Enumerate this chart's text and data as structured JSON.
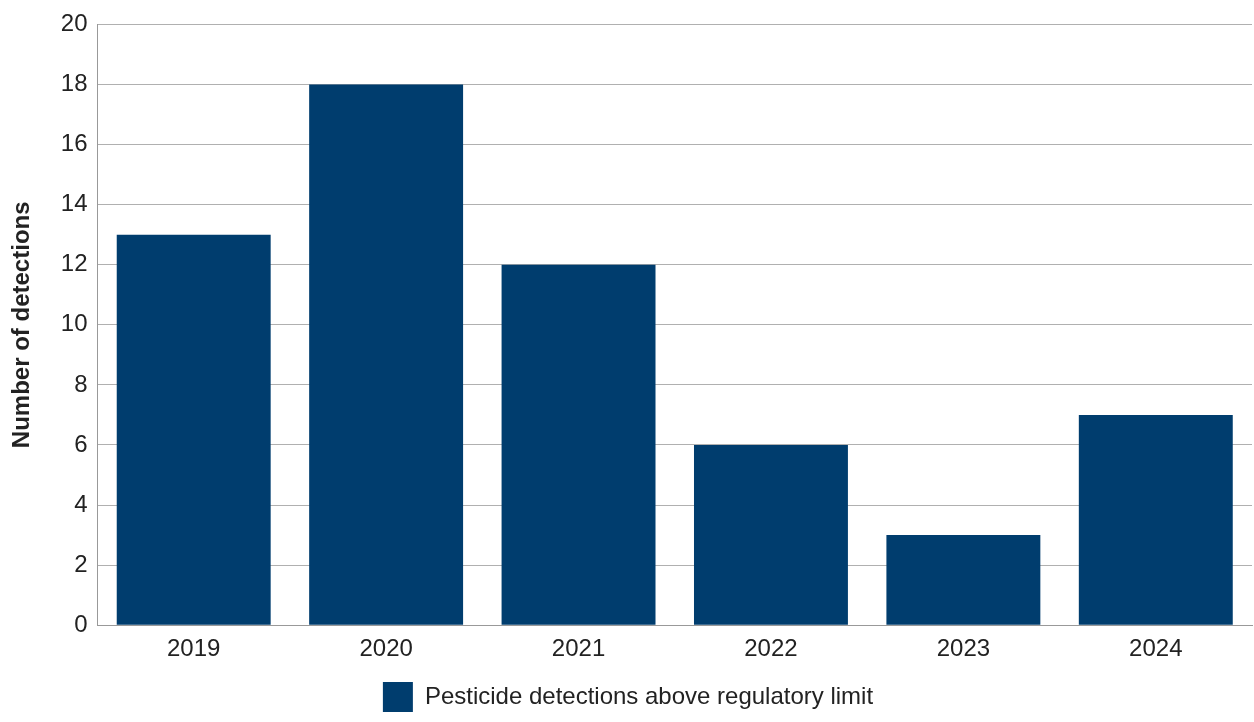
{
  "chart_data": {
    "type": "bar",
    "ylabel": "Number of detections",
    "categories": [
      "2019",
      "2020",
      "2021",
      "2022",
      "2023",
      "2024"
    ],
    "series": [
      {
        "name": "Pesticide detections above regulatory limit",
        "color": "#003d6e",
        "values": [
          13,
          18,
          12,
          6,
          3,
          7
        ]
      }
    ],
    "ylim": [
      0,
      20
    ],
    "yticks": [
      0,
      2,
      4,
      6,
      8,
      10,
      12,
      14,
      16,
      18,
      20
    ],
    "grid": "y",
    "legend": "bottom"
  }
}
